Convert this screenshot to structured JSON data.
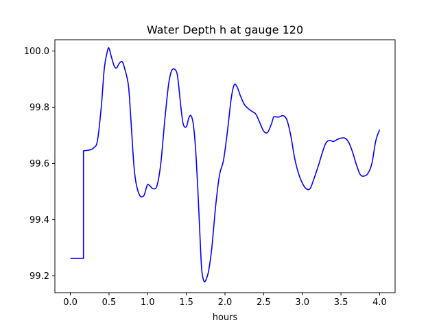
{
  "chart_data": {
    "type": "line",
    "title": "Water Depth h at gauge 120",
    "xlabel": "hours",
    "ylabel": "",
    "xlim": [
      -0.2,
      4.2
    ],
    "ylim": [
      99.14,
      100.04
    ],
    "xticks": [
      0.0,
      0.5,
      1.0,
      1.5,
      2.0,
      2.5,
      3.0,
      3.5,
      4.0
    ],
    "xtick_labels": [
      "0.0",
      "0.5",
      "1.0",
      "1.5",
      "2.0",
      "2.5",
      "3.0",
      "3.5",
      "4.0"
    ],
    "yticks": [
      99.2,
      99.4,
      99.6,
      99.8,
      100.0
    ],
    "ytick_labels": [
      "99.2",
      "99.4",
      "99.6",
      "99.8",
      "100.0"
    ],
    "grid": false,
    "series": [
      {
        "color": "#0000ff",
        "x": [
          0.0,
          0.17,
          0.17,
          0.25,
          0.3,
          0.35,
          0.4,
          0.44,
          0.48,
          0.5,
          0.53,
          0.57,
          0.6,
          0.63,
          0.67,
          0.7,
          0.75,
          0.78,
          0.82,
          0.85,
          0.9,
          0.95,
          0.98,
          1.0,
          1.03,
          1.07,
          1.12,
          1.17,
          1.22,
          1.27,
          1.31,
          1.35,
          1.38,
          1.4,
          1.43,
          1.46,
          1.5,
          1.53,
          1.56,
          1.59,
          1.62,
          1.65,
          1.68,
          1.7,
          1.73,
          1.76,
          1.79,
          1.83,
          1.88,
          1.93,
          1.98,
          2.03,
          2.08,
          2.12,
          2.16,
          2.2,
          2.25,
          2.3,
          2.35,
          2.4,
          2.45,
          2.5,
          2.55,
          2.6,
          2.63,
          2.67,
          2.7,
          2.75,
          2.8,
          2.85,
          2.9,
          2.95,
          3.0,
          3.05,
          3.1,
          3.15,
          3.2,
          3.25,
          3.3,
          3.35,
          3.4,
          3.45,
          3.5,
          3.55,
          3.6,
          3.65,
          3.7,
          3.75,
          3.8,
          3.85,
          3.9,
          3.95,
          4.0
        ],
        "y": [
          99.262,
          99.262,
          99.645,
          99.648,
          99.655,
          99.68,
          99.8,
          99.94,
          100.0,
          100.01,
          99.98,
          99.945,
          99.94,
          99.955,
          99.962,
          99.94,
          99.88,
          99.77,
          99.6,
          99.53,
          99.485,
          99.485,
          99.51,
          99.525,
          99.52,
          99.51,
          99.52,
          99.6,
          99.75,
          99.88,
          99.93,
          99.935,
          99.92,
          99.88,
          99.8,
          99.74,
          99.73,
          99.76,
          99.77,
          99.74,
          99.65,
          99.5,
          99.32,
          99.22,
          99.18,
          99.19,
          99.22,
          99.3,
          99.45,
          99.56,
          99.61,
          99.71,
          99.83,
          99.88,
          99.87,
          99.84,
          99.81,
          99.795,
          99.785,
          99.775,
          99.745,
          99.715,
          99.71,
          99.74,
          99.765,
          99.765,
          99.765,
          99.77,
          99.755,
          99.7,
          99.62,
          99.565,
          99.53,
          99.51,
          99.51,
          99.545,
          99.585,
          99.63,
          99.67,
          99.682,
          99.678,
          99.685,
          99.69,
          99.69,
          99.675,
          99.64,
          99.595,
          99.56,
          99.555,
          99.565,
          99.6,
          99.68,
          99.72
        ]
      }
    ]
  }
}
